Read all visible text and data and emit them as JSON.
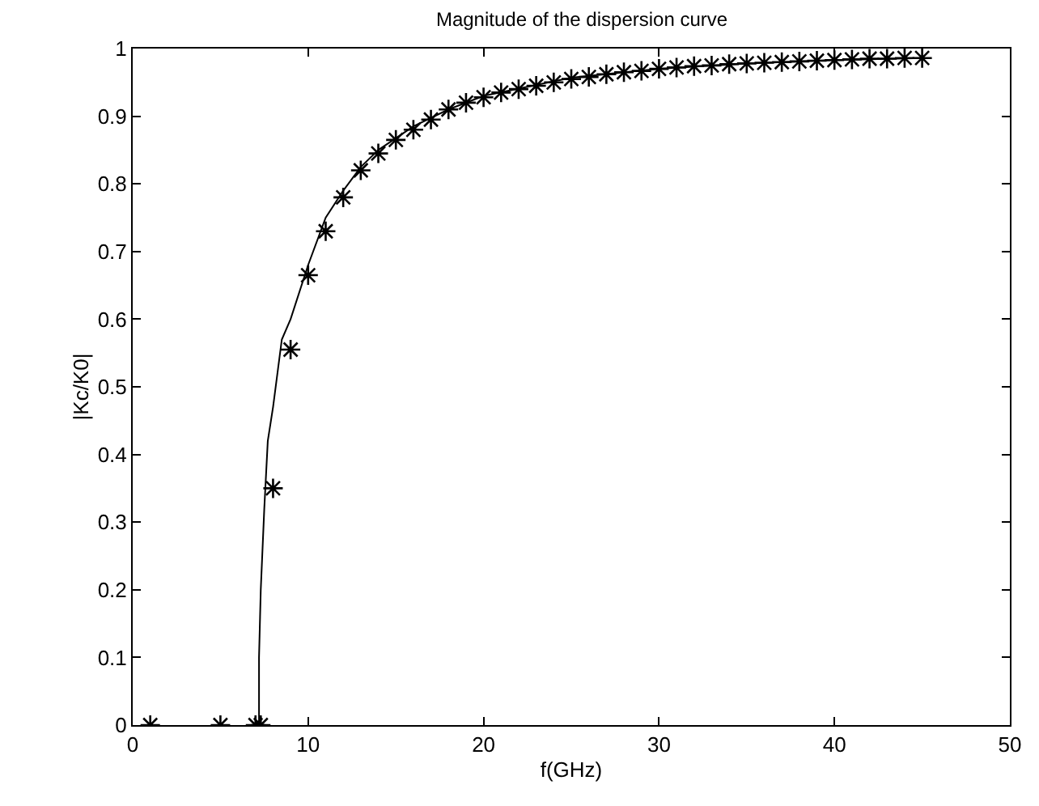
{
  "chart_data": {
    "type": "line",
    "title": "Magnitude of the dispersion curve",
    "xlabel": "f(GHz)",
    "ylabel": "|Kc/K0|",
    "xlim": [
      0,
      50
    ],
    "xticks": [
      0,
      10,
      20,
      30,
      40,
      50
    ],
    "ylim": [
      0,
      1
    ],
    "yticks": [
      0,
      0.1,
      0.2,
      0.3,
      0.4,
      0.5,
      0.6,
      0.7,
      0.8,
      0.9,
      1
    ],
    "grid": false,
    "series": [
      {
        "color": "#000000",
        "marker": "none",
        "x": [
          7.2,
          7.2,
          7.3,
          7.5,
          7.7,
          8,
          8.5,
          9,
          10,
          11,
          12,
          13,
          14,
          16,
          18,
          20,
          25,
          30,
          35,
          40,
          45
        ],
        "values": [
          0,
          0.1,
          0.2,
          0.32,
          0.42,
          0.47,
          0.57,
          0.6,
          0.68,
          0.75,
          0.79,
          0.825,
          0.85,
          0.885,
          0.91,
          0.93,
          0.957,
          0.97,
          0.978,
          0.983,
          0.986
        ]
      },
      {
        "type": "scatter",
        "color": "#000000",
        "marker": "cross",
        "x": [
          1,
          5,
          7,
          7.3,
          8,
          9,
          10,
          11,
          12,
          13,
          14,
          15,
          16,
          17,
          18,
          19,
          20,
          21,
          22,
          23,
          24,
          25,
          26,
          27,
          28,
          29,
          30,
          31,
          32,
          33,
          34,
          35,
          36,
          37,
          38,
          39,
          40,
          41,
          42,
          43,
          44,
          45
        ],
        "values": [
          0,
          0,
          0,
          0,
          0.35,
          0.555,
          0.665,
          0.73,
          0.78,
          0.82,
          0.845,
          0.865,
          0.88,
          0.895,
          0.91,
          0.92,
          0.928,
          0.935,
          0.94,
          0.945,
          0.95,
          0.955,
          0.958,
          0.962,
          0.965,
          0.967,
          0.97,
          0.972,
          0.974,
          0.975,
          0.977,
          0.978,
          0.979,
          0.98,
          0.981,
          0.982,
          0.983,
          0.984,
          0.985,
          0.985,
          0.986,
          0.986
        ]
      }
    ]
  }
}
